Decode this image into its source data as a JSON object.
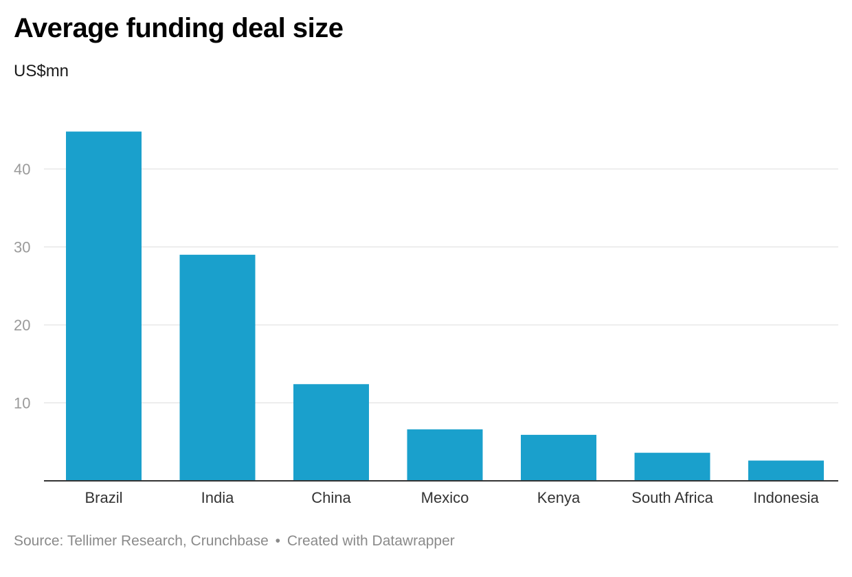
{
  "chart_data": {
    "type": "bar",
    "title": "Average funding deal size",
    "subtitle": "US$mn",
    "categories": [
      "Brazil",
      "India",
      "China",
      "Mexico",
      "Kenya",
      "South Africa",
      "Indonesia"
    ],
    "values": [
      44.8,
      29.0,
      12.4,
      6.6,
      5.9,
      3.6,
      2.6
    ],
    "yticks": [
      10,
      20,
      30,
      40
    ],
    "ylim": [
      0,
      48
    ],
    "xlabel": "",
    "ylabel": "",
    "grid": true,
    "bar_color": "#1aa0cc"
  },
  "footer": {
    "source": "Source: Tellimer Research, Crunchbase",
    "separator": "•",
    "credit": "Created with Datawrapper"
  }
}
